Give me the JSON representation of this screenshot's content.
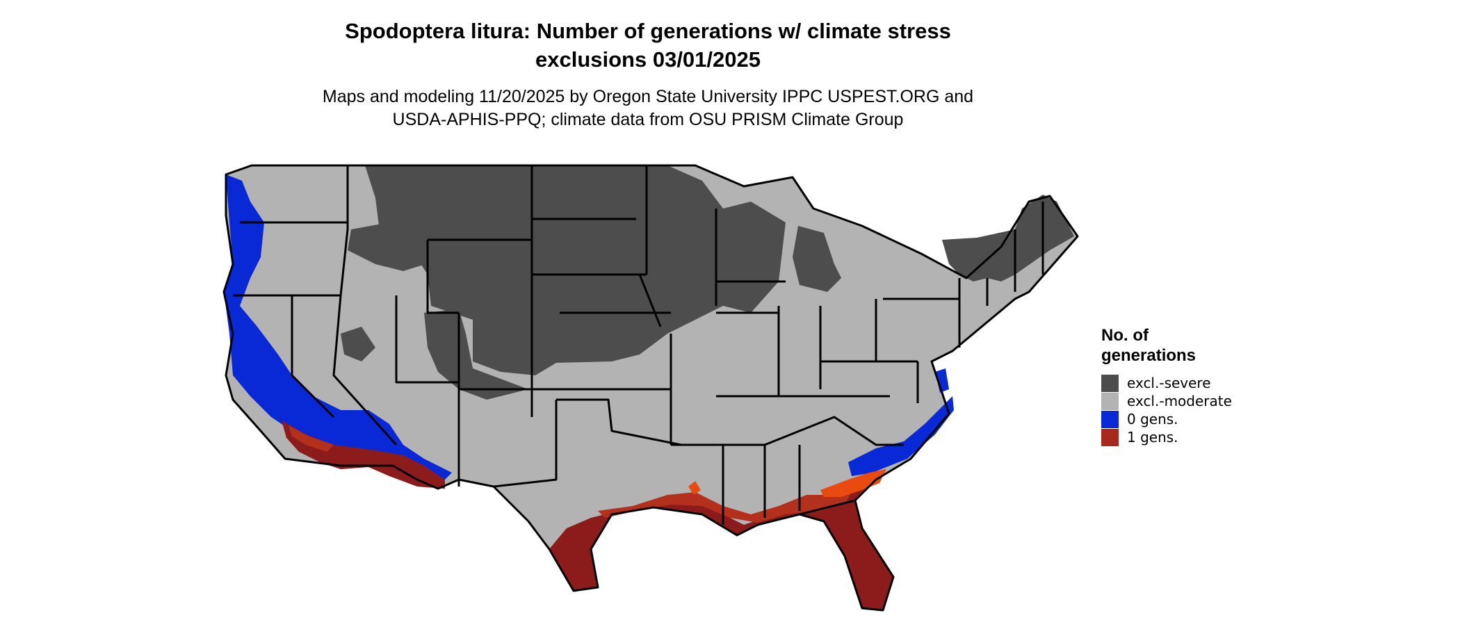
{
  "title_lines": [
    "Spodoptera litura: Number of generations w/ climate stress",
    "exclusions 03/01/2025"
  ],
  "subtitle_lines": [
    "Maps and modeling 11/20/2025 by Oregon State University IPPC USPEST.ORG and",
    "USDA-APHIS-PPQ; climate data from OSU PRISM Climate Group"
  ],
  "legend": {
    "title_lines": [
      "No. of",
      "generations"
    ],
    "items": [
      {
        "label": "excl.-severe",
        "color": "#4d4d4d"
      },
      {
        "label": "excl.-moderate",
        "color": "#b3b3b3"
      },
      {
        "label": "0 gens.",
        "color": "#0a29d6"
      },
      {
        "label": "1 gens.",
        "color": "#a8281e"
      }
    ]
  },
  "map": {
    "region": "contiguous United States",
    "colors": {
      "severe": "#4d4d4d",
      "moderate": "#b3b3b3",
      "zero": "#0a29d6",
      "one_dark": "#8c1c1c",
      "one_mid": "#b3301c",
      "one_bright": "#e84a10",
      "border": "#000000"
    }
  }
}
